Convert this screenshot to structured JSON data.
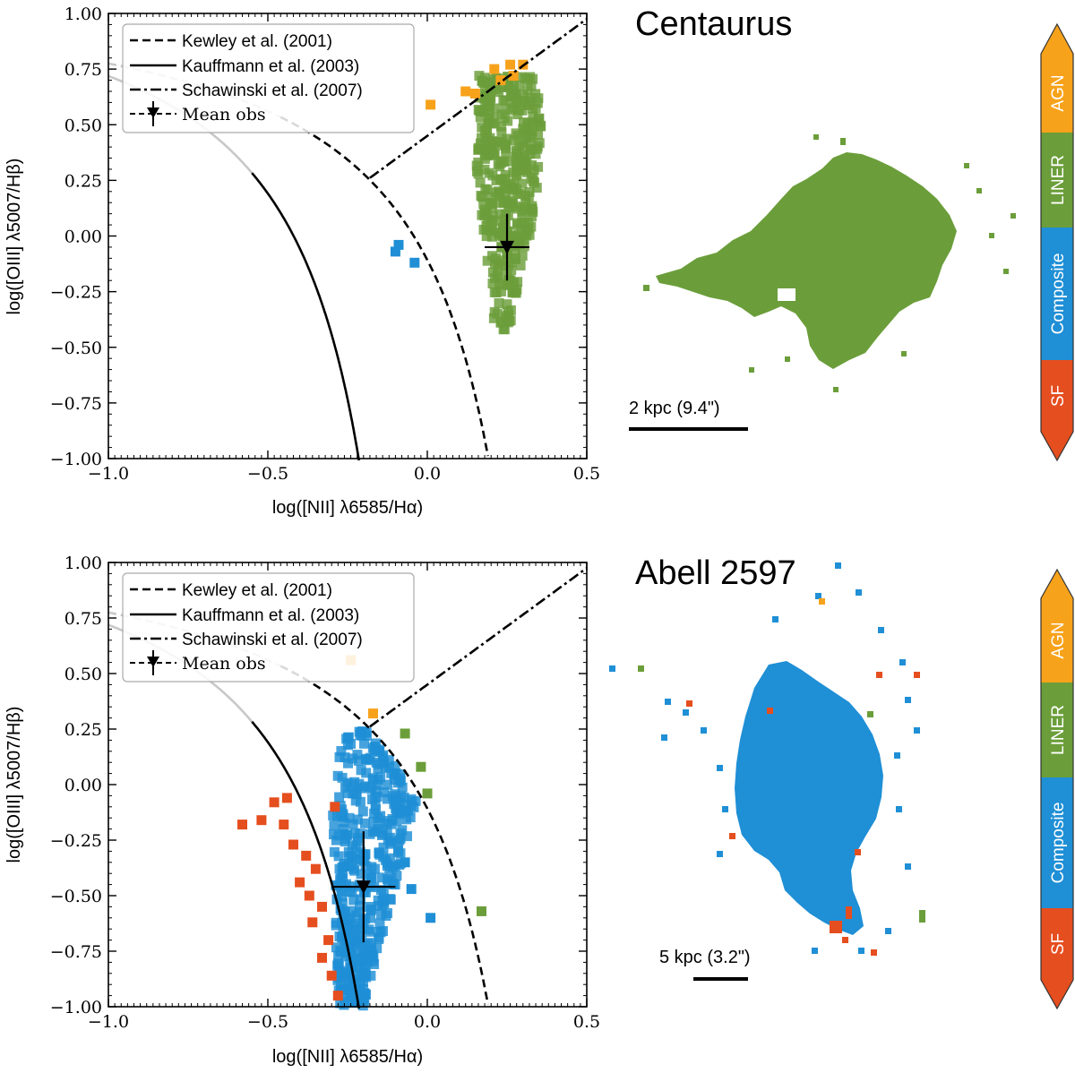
{
  "colors": {
    "agn": "#f7a21b",
    "liner": "#6b9e3a",
    "composite": "#1f8fd6",
    "sf": "#e54e1e",
    "line": "#000000"
  },
  "colorbar": {
    "labels": [
      "AGN",
      "LINER",
      "Composite",
      "SF"
    ]
  },
  "chart_data": [
    {
      "type": "scatter",
      "title": "Centaurus",
      "xlabel": "log([NII] λ6585/Hα)",
      "ylabel": "log([OIII] λ5007/Hβ)",
      "xlim": [
        -1.0,
        0.5
      ],
      "ylim": [
        -1.0,
        1.0
      ],
      "x_ticks": [
        "−1.0",
        "−0.5",
        "0.0",
        "0.5"
      ],
      "y_ticks": [
        "1.00",
        "0.75",
        "0.50",
        "0.25",
        "0.00",
        "−0.25",
        "−0.50",
        "−0.75",
        "−1.00"
      ],
      "legend": [
        "Kewley et al. (2001)",
        "Kauffmann et al. (2003)",
        "Schawinski et al. (2007)",
        "Mean obs"
      ],
      "mean_obs": {
        "x": 0.25,
        "y": -0.05,
        "xerr": 0.07,
        "yerr": 0.15
      },
      "points": [
        {
          "x": 0.21,
          "y": 0.75,
          "c": "agn"
        },
        {
          "x": 0.26,
          "y": 0.77,
          "c": "agn"
        },
        {
          "x": 0.3,
          "y": 0.77,
          "c": "agn"
        },
        {
          "x": 0.23,
          "y": 0.7,
          "c": "agn"
        },
        {
          "x": 0.27,
          "y": 0.72,
          "c": "agn"
        },
        {
          "x": 0.12,
          "y": 0.65,
          "c": "agn"
        },
        {
          "x": 0.15,
          "y": 0.64,
          "c": "agn"
        },
        {
          "x": 0.01,
          "y": 0.59,
          "c": "agn"
        },
        {
          "x": -0.09,
          "y": -0.04,
          "c": "composite"
        },
        {
          "x": -0.1,
          "y": -0.07,
          "c": "composite"
        },
        {
          "x": -0.04,
          "y": -0.12,
          "c": "composite"
        }
      ],
      "cloud": {
        "category": "liner",
        "x_center": 0.25,
        "x_spread": 0.09,
        "y_min": -0.42,
        "y_max": 0.72,
        "count": 380
      },
      "scale_bar": "2 kpc (9.4\")"
    },
    {
      "type": "scatter",
      "title": "Abell 2597",
      "xlabel": "log([NII] λ6585/Hα)",
      "ylabel": "log([OIII] λ5007/Hβ)",
      "xlim": [
        -1.0,
        0.5
      ],
      "ylim": [
        -1.0,
        1.0
      ],
      "x_ticks": [
        "−1.0",
        "−0.5",
        "0.0",
        "0.5"
      ],
      "y_ticks": [
        "1.00",
        "0.75",
        "0.50",
        "0.25",
        "0.00",
        "−0.25",
        "−0.50",
        "−0.75",
        "−1.00"
      ],
      "legend": [
        "Kewley et al. (2001)",
        "Kauffmann et al. (2003)",
        "Schawinski et al. (2007)",
        "Mean obs"
      ],
      "mean_obs": {
        "x": -0.2,
        "y": -0.46,
        "xerr": 0.1,
        "yerr": 0.25
      },
      "points": [
        {
          "x": -0.17,
          "y": 0.32,
          "c": "agn"
        },
        {
          "x": -0.24,
          "y": 0.56,
          "c": "agn"
        },
        {
          "x": -0.07,
          "y": 0.23,
          "c": "liner"
        },
        {
          "x": -0.02,
          "y": 0.08,
          "c": "liner"
        },
        {
          "x": 0.0,
          "y": -0.04,
          "c": "liner"
        },
        {
          "x": 0.17,
          "y": -0.57,
          "c": "liner"
        },
        {
          "x": -0.44,
          "y": -0.06,
          "c": "sf"
        },
        {
          "x": -0.48,
          "y": -0.08,
          "c": "sf"
        },
        {
          "x": -0.52,
          "y": -0.16,
          "c": "sf"
        },
        {
          "x": -0.58,
          "y": -0.18,
          "c": "sf"
        },
        {
          "x": -0.45,
          "y": -0.18,
          "c": "sf"
        },
        {
          "x": -0.42,
          "y": -0.27,
          "c": "sf"
        },
        {
          "x": -0.38,
          "y": -0.32,
          "c": "sf"
        },
        {
          "x": -0.35,
          "y": -0.38,
          "c": "sf"
        },
        {
          "x": -0.4,
          "y": -0.44,
          "c": "sf"
        },
        {
          "x": -0.37,
          "y": -0.5,
          "c": "sf"
        },
        {
          "x": -0.33,
          "y": -0.55,
          "c": "sf"
        },
        {
          "x": -0.36,
          "y": -0.62,
          "c": "sf"
        },
        {
          "x": -0.31,
          "y": -0.7,
          "c": "sf"
        },
        {
          "x": -0.33,
          "y": -0.78,
          "c": "sf"
        },
        {
          "x": -0.3,
          "y": -0.86,
          "c": "sf"
        },
        {
          "x": -0.28,
          "y": -0.95,
          "c": "sf"
        },
        {
          "x": -0.29,
          "y": -0.1,
          "c": "sf"
        },
        {
          "x": 0.01,
          "y": -0.6,
          "c": "composite"
        },
        {
          "x": -0.07,
          "y": -0.35,
          "c": "composite"
        },
        {
          "x": -0.05,
          "y": -0.47,
          "c": "composite"
        }
      ],
      "cloud": {
        "category": "composite",
        "x_center": -0.17,
        "x_spread": 0.09,
        "y_min": -1.0,
        "y_max": 0.25,
        "count": 420
      },
      "scale_bar": "5 kpc (3.2\")"
    }
  ]
}
